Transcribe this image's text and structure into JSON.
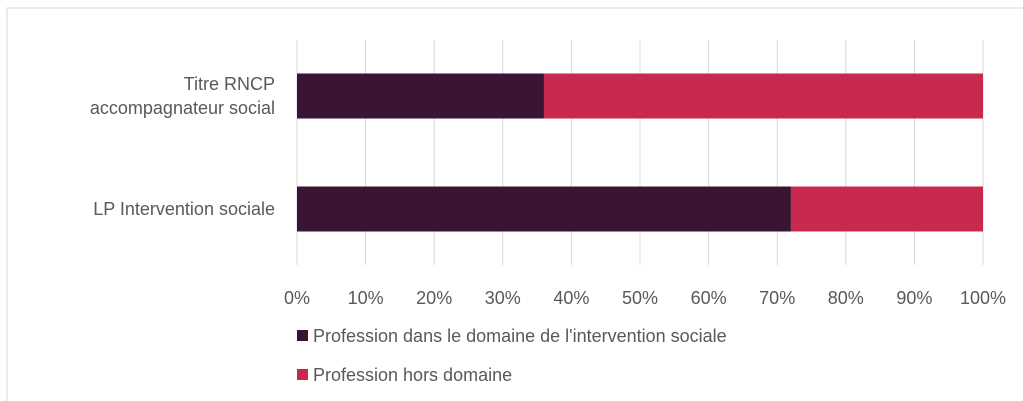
{
  "chart_data": {
    "type": "stacked-barh",
    "categories": [
      "Titre RNCP accompagnateur social",
      "LP Intervention sociale"
    ],
    "series": [
      {
        "name": "Profession dans le domaine de l'intervention sociale",
        "color": "#3a1533",
        "values": [
          36,
          72
        ]
      },
      {
        "name": "Profession hors domaine",
        "color": "#c8294f",
        "values": [
          64,
          28
        ]
      }
    ],
    "xlim": [
      0,
      100
    ],
    "xticks": [
      {
        "value": 0,
        "label": "0%"
      },
      {
        "value": 10,
        "label": "10%"
      },
      {
        "value": 20,
        "label": "20%"
      },
      {
        "value": 30,
        "label": "30%"
      },
      {
        "value": 40,
        "label": "40%"
      },
      {
        "value": 50,
        "label": "50%"
      },
      {
        "value": 60,
        "label": "60%"
      },
      {
        "value": 70,
        "label": "70%"
      },
      {
        "value": 80,
        "label": "80%"
      },
      {
        "value": 90,
        "label": "90%"
      },
      {
        "value": 100,
        "label": "100%"
      }
    ],
    "grid": true,
    "legend": "bottom"
  }
}
